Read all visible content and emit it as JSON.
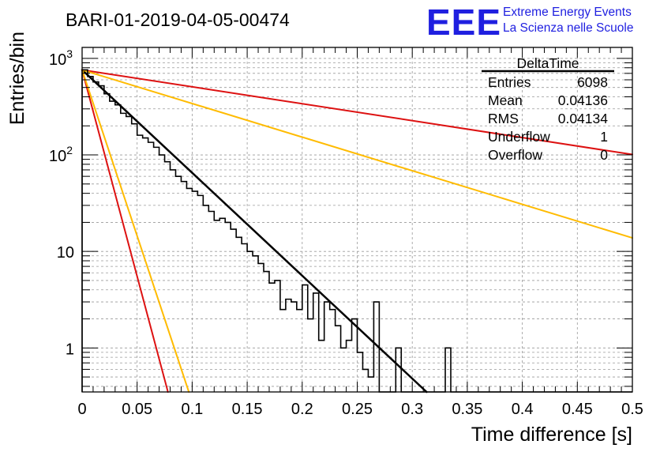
{
  "chart_data": {
    "type": "histogram",
    "title": "BARI-01-2019-04-05-00474",
    "xlabel": "Time difference [s]",
    "ylabel": "Entries/bin",
    "xlim": [
      0,
      0.5
    ],
    "ylim": [
      0.35,
      1300
    ],
    "yscale": "log",
    "grid": true,
    "x_ticks": [
      "0",
      "0.05",
      "0.1",
      "0.15",
      "0.2",
      "0.25",
      "0.3",
      "0.35",
      "0.4",
      "0.45",
      "0.5"
    ],
    "y_tick_labels": [
      {
        "value": 1,
        "label": "1"
      },
      {
        "value": 10,
        "label": "10"
      },
      {
        "value": 100,
        "label": "10",
        "sup": "2"
      },
      {
        "value": 1000,
        "label": "10",
        "sup": "3"
      }
    ],
    "histogram": {
      "bin_width": 0.005,
      "x_start": 0,
      "counts": [
        760,
        650,
        570,
        520,
        430,
        360,
        330,
        270,
        250,
        210,
        160,
        150,
        135,
        120,
        100,
        85,
        70,
        60,
        53,
        45,
        42,
        38,
        30,
        26,
        21,
        22,
        20,
        17,
        14,
        12,
        10,
        9,
        7.5,
        6.2,
        4.7,
        5,
        2.5,
        3.2,
        3,
        2.5,
        4.5,
        2,
        3.7,
        1.2,
        3,
        2.5,
        1.7,
        1,
        1.2,
        2,
        0.9,
        0.6,
        0.5,
        3,
        0,
        0,
        0,
        1,
        0,
        0,
        0,
        0,
        0,
        0,
        0,
        0,
        1,
        0,
        0,
        0,
        0,
        0,
        0,
        0,
        0,
        0,
        0,
        0,
        0,
        0,
        0,
        0,
        0,
        0,
        0,
        0,
        0,
        0,
        0,
        0,
        0,
        0,
        0,
        0,
        0,
        0,
        0,
        0,
        0,
        0
      ]
    },
    "lines": [
      {
        "color": "#000000",
        "points": [
          [
            0,
            760
          ],
          [
            0.313,
            0.35
          ]
        ],
        "width": 2.5
      },
      {
        "color": "#dd1111",
        "points": [
          [
            0,
            760
          ],
          [
            0.5,
            101
          ]
        ],
        "width": 2
      },
      {
        "color": "#ffbb00",
        "points": [
          [
            0,
            760
          ],
          [
            0.5,
            13.8
          ]
        ],
        "width": 2
      },
      {
        "color": "#dd1111",
        "points": [
          [
            0,
            760
          ],
          [
            0.078,
            0.35
          ]
        ],
        "width": 2
      },
      {
        "color": "#ffbb00",
        "points": [
          [
            0,
            760
          ],
          [
            0.097,
            0.35
          ]
        ],
        "width": 2
      }
    ],
    "stats_box": {
      "title": "DeltaTime",
      "rows": [
        {
          "label": "Entries",
          "value": "6098"
        },
        {
          "label": "Mean",
          "value": "0.04136"
        },
        {
          "label": "RMS",
          "value": "0.04134"
        },
        {
          "label": "Underflow",
          "value": "1"
        },
        {
          "label": "Overflow",
          "value": "0"
        }
      ]
    }
  },
  "logo": {
    "text": "EEE",
    "line1": "Extreme Energy Events",
    "line2": "La Scienza nelle Scuole"
  }
}
